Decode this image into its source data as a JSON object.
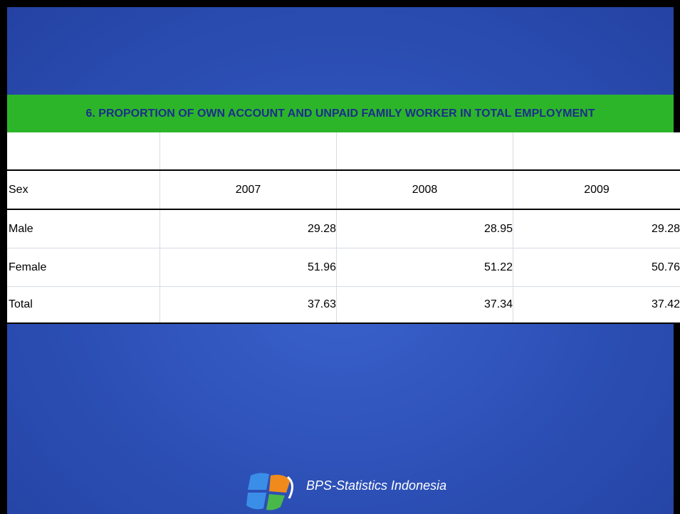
{
  "header": {
    "title": "6. PROPORTION OF OWN ACCOUNT AND UNPAID FAMILY WORKER IN TOTAL EMPLOYMENT"
  },
  "table": {
    "columns": [
      "Sex",
      "2007",
      "2008",
      "2009"
    ],
    "rows": [
      [
        "Male",
        "29.28",
        "28.95",
        "29.28"
      ],
      [
        "Female",
        "51.96",
        "51.22",
        "50.76"
      ],
      [
        "Total",
        "37.63",
        "37.34",
        "37.42"
      ]
    ]
  },
  "footer": {
    "organization": "BPS-Statistics Indonesia"
  }
}
